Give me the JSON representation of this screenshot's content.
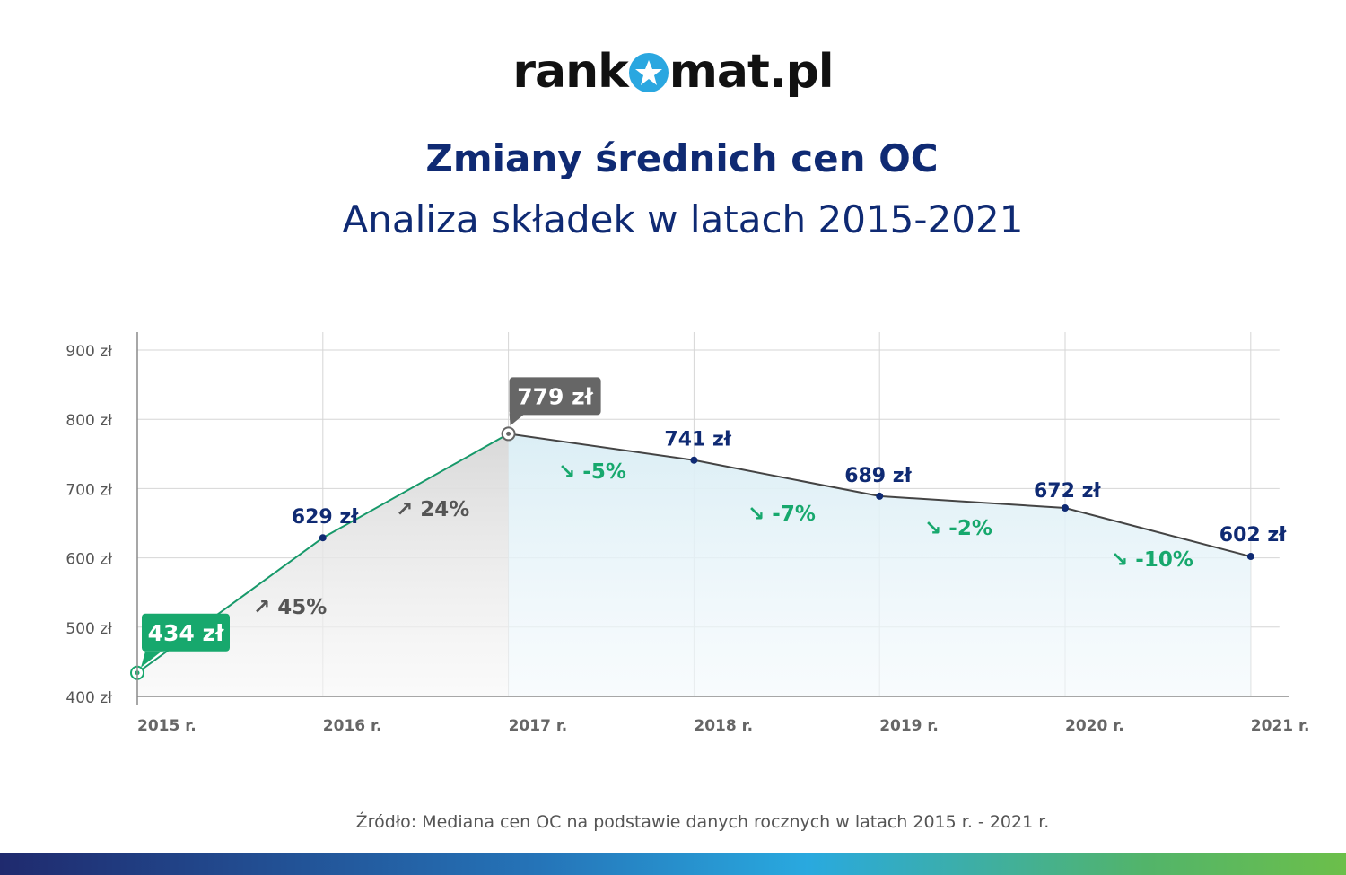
{
  "logo": {
    "left": "rank",
    "right": "mat.pl",
    "icon": "star-icon"
  },
  "title": "Zmiany średnich cen OC",
  "subtitle": "Analiza składek w latach 2015-2021",
  "source": "Źródło: Mediana cen OC na podstawie danych rocznych w latach 2015 r. - 2021 r.",
  "colors": {
    "title": "#0f2a73",
    "rise_line": "#17996a",
    "fall_line": "#444444",
    "highlight_low": "#17a86d",
    "highlight_high": "#666666",
    "change_up": "#555555",
    "change_down": "#17a86d",
    "point": "#0f2a73"
  },
  "chart_data": {
    "type": "line",
    "categories": [
      "2015 r.",
      "2016 r.",
      "2017 r.",
      "2018 r.",
      "2019 r.",
      "2020 r.",
      "2021 r."
    ],
    "values": [
      434,
      629,
      779,
      741,
      689,
      672,
      602
    ],
    "value_labels": [
      "434 zł",
      "629 zł",
      "779 zł",
      "741 zł",
      "689 zł",
      "672 zł",
      "602 zł"
    ],
    "changes": [
      "↗ 45%",
      "↗ 24%",
      "↘ -5%",
      "↘ -7%",
      "↘ -2%",
      "↘ -10%"
    ],
    "y_ticks": [
      400,
      500,
      600,
      700,
      800,
      900
    ],
    "y_tick_labels": [
      "400 zł",
      "500 zł",
      "600 zł",
      "700 zł",
      "800 zł",
      "900 zł"
    ],
    "ylim": [
      400,
      900
    ],
    "grid": true,
    "highlighted_points": [
      0,
      2
    ]
  }
}
